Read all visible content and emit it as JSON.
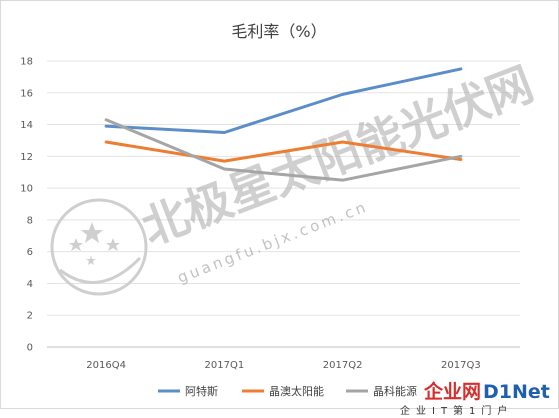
{
  "chart_data": {
    "type": "line",
    "title": "毛利率（%）",
    "categories": [
      "2016Q4",
      "2017Q1",
      "2017Q2",
      "2017Q3"
    ],
    "y_ticks": [
      0,
      2,
      4,
      6,
      8,
      10,
      12,
      14,
      16,
      18
    ],
    "ylim": [
      0,
      18
    ],
    "grid": true,
    "legend_position": "bottom",
    "series": [
      {
        "name": "阿特斯",
        "color": "#5b8ec9",
        "values": [
          13.9,
          13.5,
          15.9,
          17.5
        ]
      },
      {
        "name": "晶澳太阳能",
        "color": "#ed7d31",
        "values": [
          12.9,
          11.7,
          12.9,
          11.8
        ]
      },
      {
        "name": "晶科能源",
        "color": "#a5a5a5",
        "values": [
          14.3,
          11.2,
          10.5,
          12.0
        ]
      }
    ]
  },
  "watermark": {
    "main": "北极星太阳能光伏网",
    "url": "guangfu.bjx.com.cn"
  },
  "brand": {
    "name_cn": "企业网",
    "name_en": "D1Net",
    "tagline": "企业IT第1门户"
  }
}
